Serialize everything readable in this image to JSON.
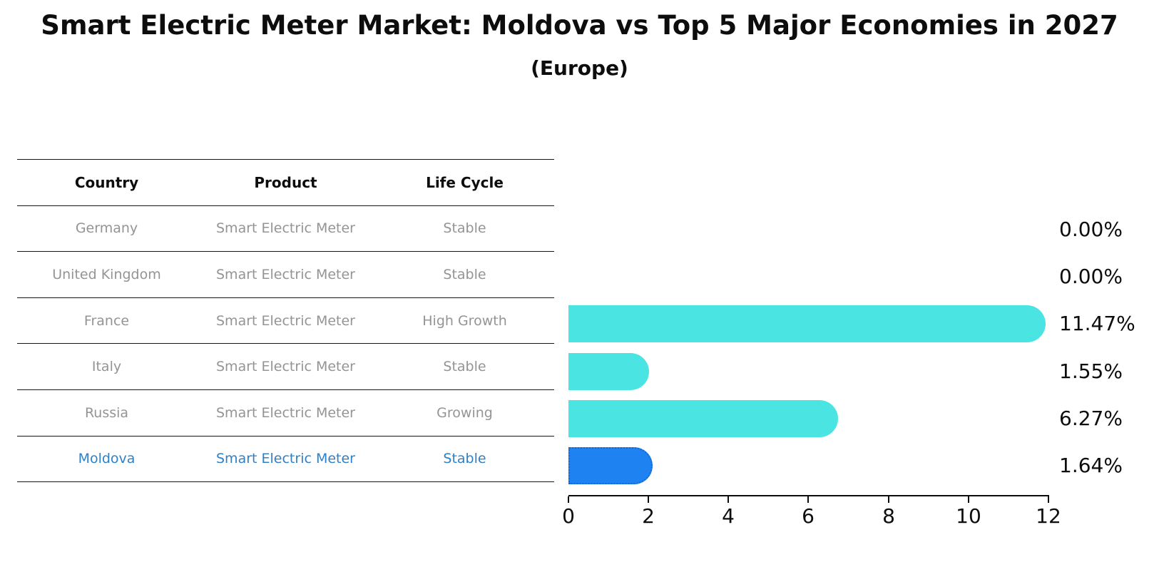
{
  "title": "Smart Electric Meter Market: Moldova vs Top 5 Major Economies in 2027",
  "subtitle": "(Europe)",
  "table": {
    "headers": [
      "Country",
      "Product",
      "Life Cycle"
    ],
    "rows": [
      {
        "country": "Germany",
        "product": "Smart Electric Meter",
        "life_cycle": "Stable",
        "highlight": false
      },
      {
        "country": "United Kingdom",
        "product": "Smart Electric Meter",
        "life_cycle": "Stable",
        "highlight": false
      },
      {
        "country": "France",
        "product": "Smart Electric Meter",
        "life_cycle": "High Growth",
        "highlight": false
      },
      {
        "country": "Italy",
        "product": "Smart Electric Meter",
        "life_cycle": "Stable",
        "highlight": false
      },
      {
        "country": "Russia",
        "product": "Smart Electric Meter",
        "life_cycle": "Growing",
        "highlight": false
      },
      {
        "country": "Moldova",
        "product": "Smart Electric Meter",
        "life_cycle": "Stable",
        "highlight": true
      }
    ]
  },
  "chart_data": {
    "type": "bar",
    "orientation": "horizontal",
    "title": "Smart Electric Meter Market: Moldova vs Top 5 Major Economies in 2027",
    "subtitle": "(Europe)",
    "categories": [
      "Germany",
      "United Kingdom",
      "France",
      "Italy",
      "Russia",
      "Moldova"
    ],
    "values": [
      0.0,
      0.0,
      11.47,
      1.55,
      6.27,
      1.64
    ],
    "value_labels": [
      "0.00%",
      "0.00%",
      "11.47%",
      "1.55%",
      "6.27%",
      "1.64%"
    ],
    "unit": "%",
    "xlim": [
      0,
      12
    ],
    "xticks": [
      "0",
      "2",
      "4",
      "6",
      "8",
      "10",
      "12"
    ],
    "grid": false,
    "legend": false,
    "highlight_index": 5,
    "bar_color": "#4AE5E2",
    "highlight_color": "#1E82F0",
    "highlight_border_color": "#1467D9"
  },
  "colors": {
    "highlight_text": "#2E80C8",
    "table_text": "#949494",
    "heading_text": "#0d0d0d"
  }
}
